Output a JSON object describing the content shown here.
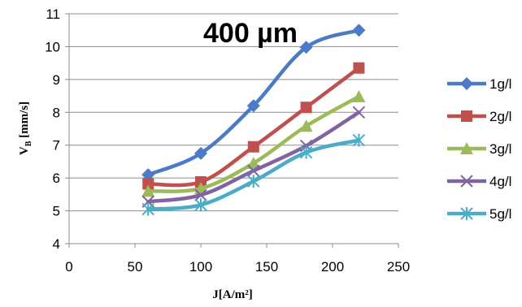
{
  "chart_data": {
    "type": "line",
    "title": "",
    "annotation": "400 µm",
    "xlabel": "J[A/m²]",
    "ylabel_main": "V",
    "ylabel_sub": "B",
    "ylabel_rest": " [mm/s]",
    "xlim": [
      0,
      250
    ],
    "ylim": [
      4,
      11
    ],
    "xticks": [
      0,
      50,
      100,
      150,
      200,
      250
    ],
    "yticks": [
      4,
      5,
      6,
      7,
      8,
      9,
      10,
      11
    ],
    "grid": "horizontal",
    "legend_position": "right",
    "x": [
      60,
      100,
      140,
      180,
      220
    ],
    "series": [
      {
        "name": "1g/l",
        "values": [
          6.1,
          6.75,
          8.2,
          9.98,
          10.5
        ],
        "color": "#4a7bc4",
        "marker": "diamond"
      },
      {
        "name": "2g/l",
        "values": [
          5.82,
          5.88,
          6.95,
          8.15,
          9.35
        ],
        "color": "#c0504d",
        "marker": "square"
      },
      {
        "name": "3g/l",
        "values": [
          5.6,
          5.68,
          6.45,
          7.58,
          8.48
        ],
        "color": "#9bbb59",
        "marker": "triangle"
      },
      {
        "name": "4g/l",
        "values": [
          5.28,
          5.48,
          6.22,
          6.98,
          8.0
        ],
        "color": "#8064a2",
        "marker": "x"
      },
      {
        "name": "5g/l",
        "values": [
          5.05,
          5.18,
          5.9,
          6.78,
          7.15
        ],
        "color": "#4bacc6",
        "marker": "star"
      }
    ]
  }
}
